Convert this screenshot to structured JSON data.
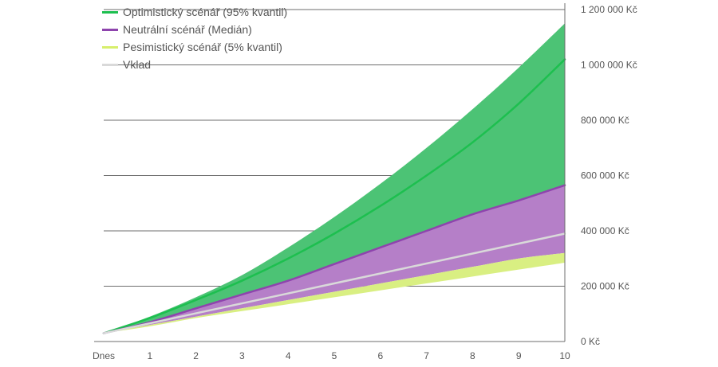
{
  "chart_data": {
    "type": "area",
    "title": "",
    "xlabel": "",
    "ylabel": "",
    "x": [
      0,
      1,
      2,
      3,
      4,
      5,
      6,
      7,
      8,
      9,
      10
    ],
    "x_tick_labels": [
      "Dnes",
      "1",
      "2",
      "3",
      "4",
      "5",
      "6",
      "7",
      "8",
      "9",
      "10"
    ],
    "y_tick_labels": [
      "0 Kč",
      "200 000 Kč",
      "400 000 Kč",
      "600 000 Kč",
      "800 000 Kč",
      "1 000 000 Kč",
      "1 200 000 Kč"
    ],
    "y_ticks": [
      0,
      200000,
      400000,
      600000,
      800000,
      1000000,
      1200000
    ],
    "ylim": [
      0,
      1200000
    ],
    "grid": true,
    "legend_position": "top-left",
    "legend": [
      {
        "label": "Optimistický scénář (95% kvantil)",
        "color": "#1dbf4f"
      },
      {
        "label": "Neutrální scénář (Medián)",
        "color": "#8e44ad"
      },
      {
        "label": "Pesimistický scénář (5% kvantil)",
        "color": "#d7ef6c"
      },
      {
        "label": "Vklad",
        "color": "#d9d9d9"
      }
    ],
    "bands": {
      "optimistic_upper": {
        "values": [
          30000,
          90000,
          160000,
          240000,
          340000,
          450000,
          570000,
          700000,
          840000,
          990000,
          1150000
        ],
        "color": "#4cc375"
      },
      "neutral_upper": {
        "values": [
          30000,
          70000,
          120000,
          170000,
          220000,
          280000,
          340000,
          400000,
          460000,
          510000,
          565000
        ],
        "color": "#b57fc8"
      },
      "pessimistic_upper": {
        "values": [
          30000,
          60000,
          90000,
          120000,
          150000,
          180000,
          210000,
          240000,
          270000,
          300000,
          320000
        ],
        "color": "#d9ef82"
      },
      "pessimistic_lower": {
        "values": [
          30000,
          55000,
          85000,
          110000,
          135000,
          160000,
          185000,
          210000,
          235000,
          260000,
          285000
        ],
        "color": "#e6f3a0"
      }
    },
    "series": [
      {
        "name": "Optimistický scénář (95% kvantil)",
        "values": [
          30000,
          85000,
          150000,
          220000,
          300000,
          390000,
          490000,
          600000,
          720000,
          860000,
          1020000
        ],
        "color": "#1dbf4f"
      },
      {
        "name": "Neutrální scénář (Medián)",
        "values": [
          30000,
          70000,
          120000,
          170000,
          220000,
          280000,
          340000,
          400000,
          460000,
          510000,
          565000
        ],
        "color": "#8e44ad"
      },
      {
        "name": "Vklad",
        "values": [
          30000,
          66000,
          102000,
          138000,
          174000,
          210000,
          246000,
          282000,
          318000,
          354000,
          390000
        ],
        "color": "#d9d9d9"
      }
    ]
  }
}
